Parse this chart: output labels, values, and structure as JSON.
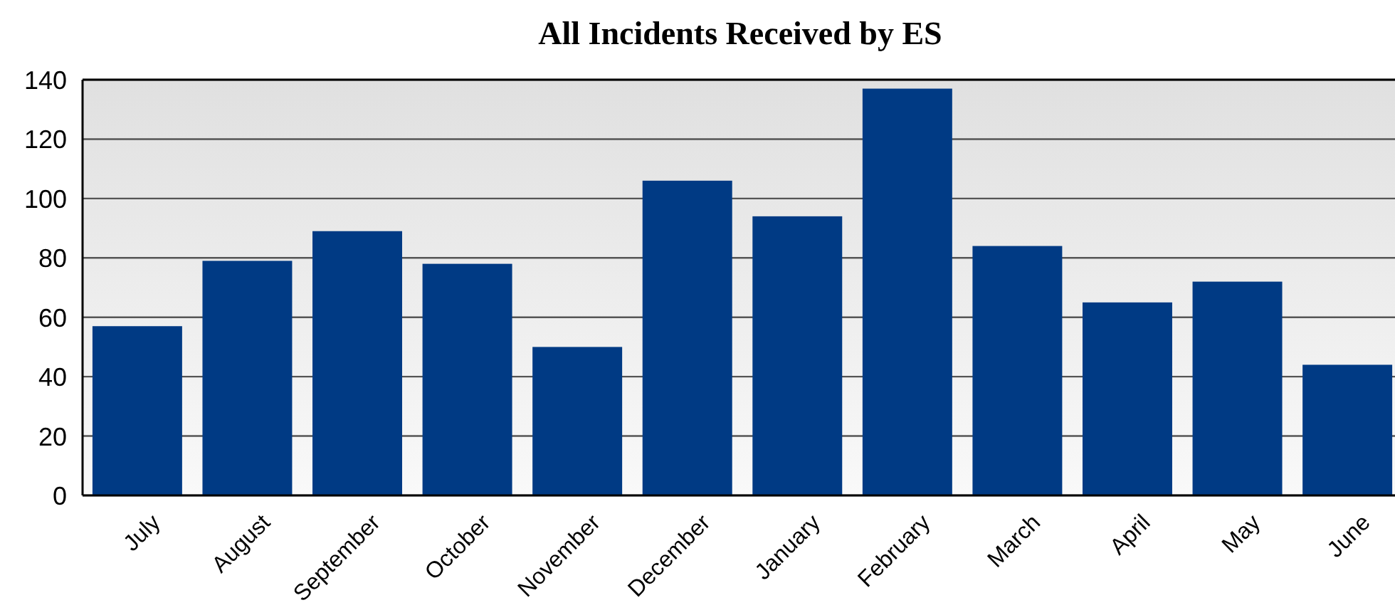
{
  "chart_data": {
    "type": "bar",
    "title": "All Incidents Received by ES",
    "categories": [
      "July",
      "August",
      "September",
      "October",
      "November",
      "December",
      "January",
      "February",
      "March",
      "April",
      "May",
      "June"
    ],
    "values": [
      57,
      79,
      89,
      78,
      50,
      106,
      94,
      137,
      84,
      65,
      72,
      44
    ],
    "color": "#003a84",
    "ylim": [
      0,
      140
    ],
    "yticks": [
      0,
      20,
      40,
      60,
      80,
      100,
      120,
      140
    ],
    "grid": "y"
  }
}
